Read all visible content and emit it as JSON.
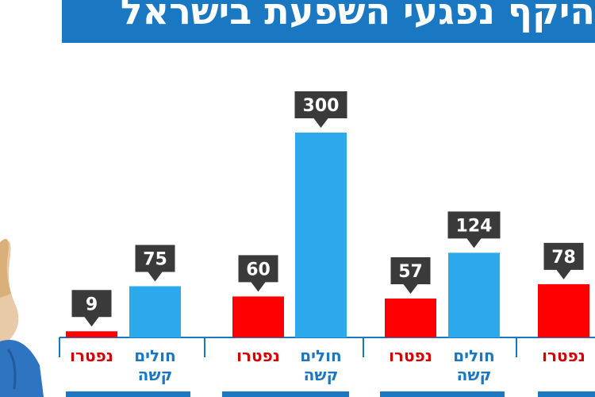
{
  "header": {
    "title": "היקף נפגעי השפעת בישראל"
  },
  "colors": {
    "title_bg": "#1a78c2",
    "deaths": "#ff0000",
    "seriously_ill": "#2ca8ec",
    "callout": "#3a3a3a",
    "axis": "#1a78c2",
    "deaths_label": "#d40000",
    "ill_label": "#1a78c2"
  },
  "chart_data": {
    "type": "bar",
    "title": "היקף נפגעי השפעת בישראל",
    "xlabel": "",
    "ylabel": "",
    "ylim": [
      0,
      300
    ],
    "groups": [
      {
        "bars": [
          {
            "series": "deaths",
            "value": 9,
            "label_lines": [
              "נפטרו"
            ]
          },
          {
            "series": "seriously_ill",
            "value": 75,
            "label_lines": [
              "חולים",
              "קשה"
            ]
          }
        ]
      },
      {
        "bars": [
          {
            "series": "deaths",
            "value": 60,
            "label_lines": [
              "נפטרו"
            ]
          },
          {
            "series": "seriously_ill",
            "value": 300,
            "label_lines": [
              "חולים",
              "קשה"
            ]
          }
        ]
      },
      {
        "bars": [
          {
            "series": "deaths",
            "value": 57,
            "label_lines": [
              "נפטרו"
            ]
          },
          {
            "series": "seriously_ill",
            "value": 124,
            "label_lines": [
              "חולים",
              "קשה"
            ]
          }
        ]
      },
      {
        "bars": [
          {
            "series": "deaths",
            "value": 78,
            "label_lines": [
              "נפטרו"
            ]
          }
        ]
      }
    ]
  }
}
